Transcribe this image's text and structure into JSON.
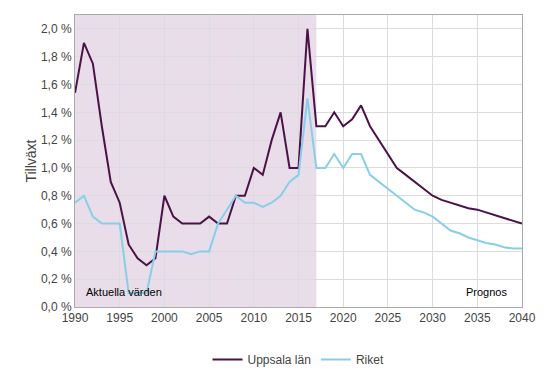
{
  "chart_data": {
    "type": "line",
    "title": "",
    "ylabel": "Tillväxt",
    "x": [
      1990,
      1991,
      1992,
      1993,
      1994,
      1995,
      1996,
      1997,
      1998,
      1999,
      2000,
      2001,
      2002,
      2003,
      2004,
      2005,
      2006,
      2007,
      2008,
      2009,
      2010,
      2011,
      2012,
      2013,
      2014,
      2015,
      2016,
      2017,
      2018,
      2019,
      2020,
      2021,
      2022,
      2023,
      2024,
      2025,
      2026,
      2027,
      2028,
      2029,
      2030,
      2031,
      2032,
      2033,
      2034,
      2035,
      2036,
      2037,
      2038,
      2039,
      2040
    ],
    "series": [
      {
        "name": "Uppsala län",
        "color": "#4b1248",
        "values": [
          0.0154,
          0.019,
          0.0175,
          0.013,
          0.009,
          0.0075,
          0.0045,
          0.0035,
          0.003,
          0.0035,
          0.008,
          0.0065,
          0.006,
          0.006,
          0.006,
          0.0065,
          0.006,
          0.006,
          0.008,
          0.008,
          0.01,
          0.0095,
          0.012,
          0.014,
          0.01,
          0.01,
          0.02,
          0.013,
          0.013,
          0.014,
          0.013,
          0.0135,
          0.0145,
          0.013,
          0.012,
          0.011,
          0.01,
          0.0095,
          0.009,
          0.0085,
          0.008,
          0.0077,
          0.0075,
          0.0073,
          0.0071,
          0.007,
          0.0068,
          0.0066,
          0.0064,
          0.0062,
          0.006
        ]
      },
      {
        "name": "Riket",
        "color": "#87ceeb",
        "values": [
          0.0075,
          0.008,
          0.0065,
          0.006,
          0.006,
          0.006,
          0.001,
          0.001,
          0.001,
          0.004,
          0.004,
          0.004,
          0.004,
          0.0038,
          0.004,
          0.004,
          0.006,
          0.007,
          0.008,
          0.0075,
          0.0075,
          0.0072,
          0.0075,
          0.008,
          0.009,
          0.0095,
          0.015,
          0.01,
          0.01,
          0.011,
          0.01,
          0.011,
          0.011,
          0.0095,
          0.009,
          0.0085,
          0.008,
          0.0075,
          0.007,
          0.0068,
          0.0065,
          0.006,
          0.0055,
          0.0053,
          0.005,
          0.0048,
          0.0046,
          0.0045,
          0.0043,
          0.0042,
          0.0042
        ]
      }
    ],
    "xlim": [
      1990,
      2040
    ],
    "xticks": [
      1990,
      1995,
      2000,
      2005,
      2010,
      2015,
      2020,
      2025,
      2030,
      2035,
      2040
    ],
    "ylim": [
      0.0,
      0.021
    ],
    "yticks": [
      {
        "value": 0.0,
        "label": "0,0 %"
      },
      {
        "value": 0.002,
        "label": "0,2 %"
      },
      {
        "value": 0.004,
        "label": "0,4 %"
      },
      {
        "value": 0.006,
        "label": "0,6 %"
      },
      {
        "value": 0.008,
        "label": "0,8 %"
      },
      {
        "value": 0.01,
        "label": "1,0 %"
      },
      {
        "value": 0.012,
        "label": "1,2 %"
      },
      {
        "value": 0.014,
        "label": "1,4 %"
      },
      {
        "value": 0.016,
        "label": "1,6 %"
      },
      {
        "value": 0.018,
        "label": "1,8 %"
      },
      {
        "value": 0.02,
        "label": "2,0 %"
      }
    ],
    "shaded_region": {
      "start": 1990,
      "end": 2017,
      "color": "#e8dde8"
    },
    "annotations": [
      {
        "text": "Aktuella värden",
        "x": 1991,
        "y": 0.0005
      },
      {
        "text": "Prognos",
        "x": 2038.5,
        "y": 0.0005
      }
    ],
    "grid": true,
    "legend": "bottom"
  }
}
